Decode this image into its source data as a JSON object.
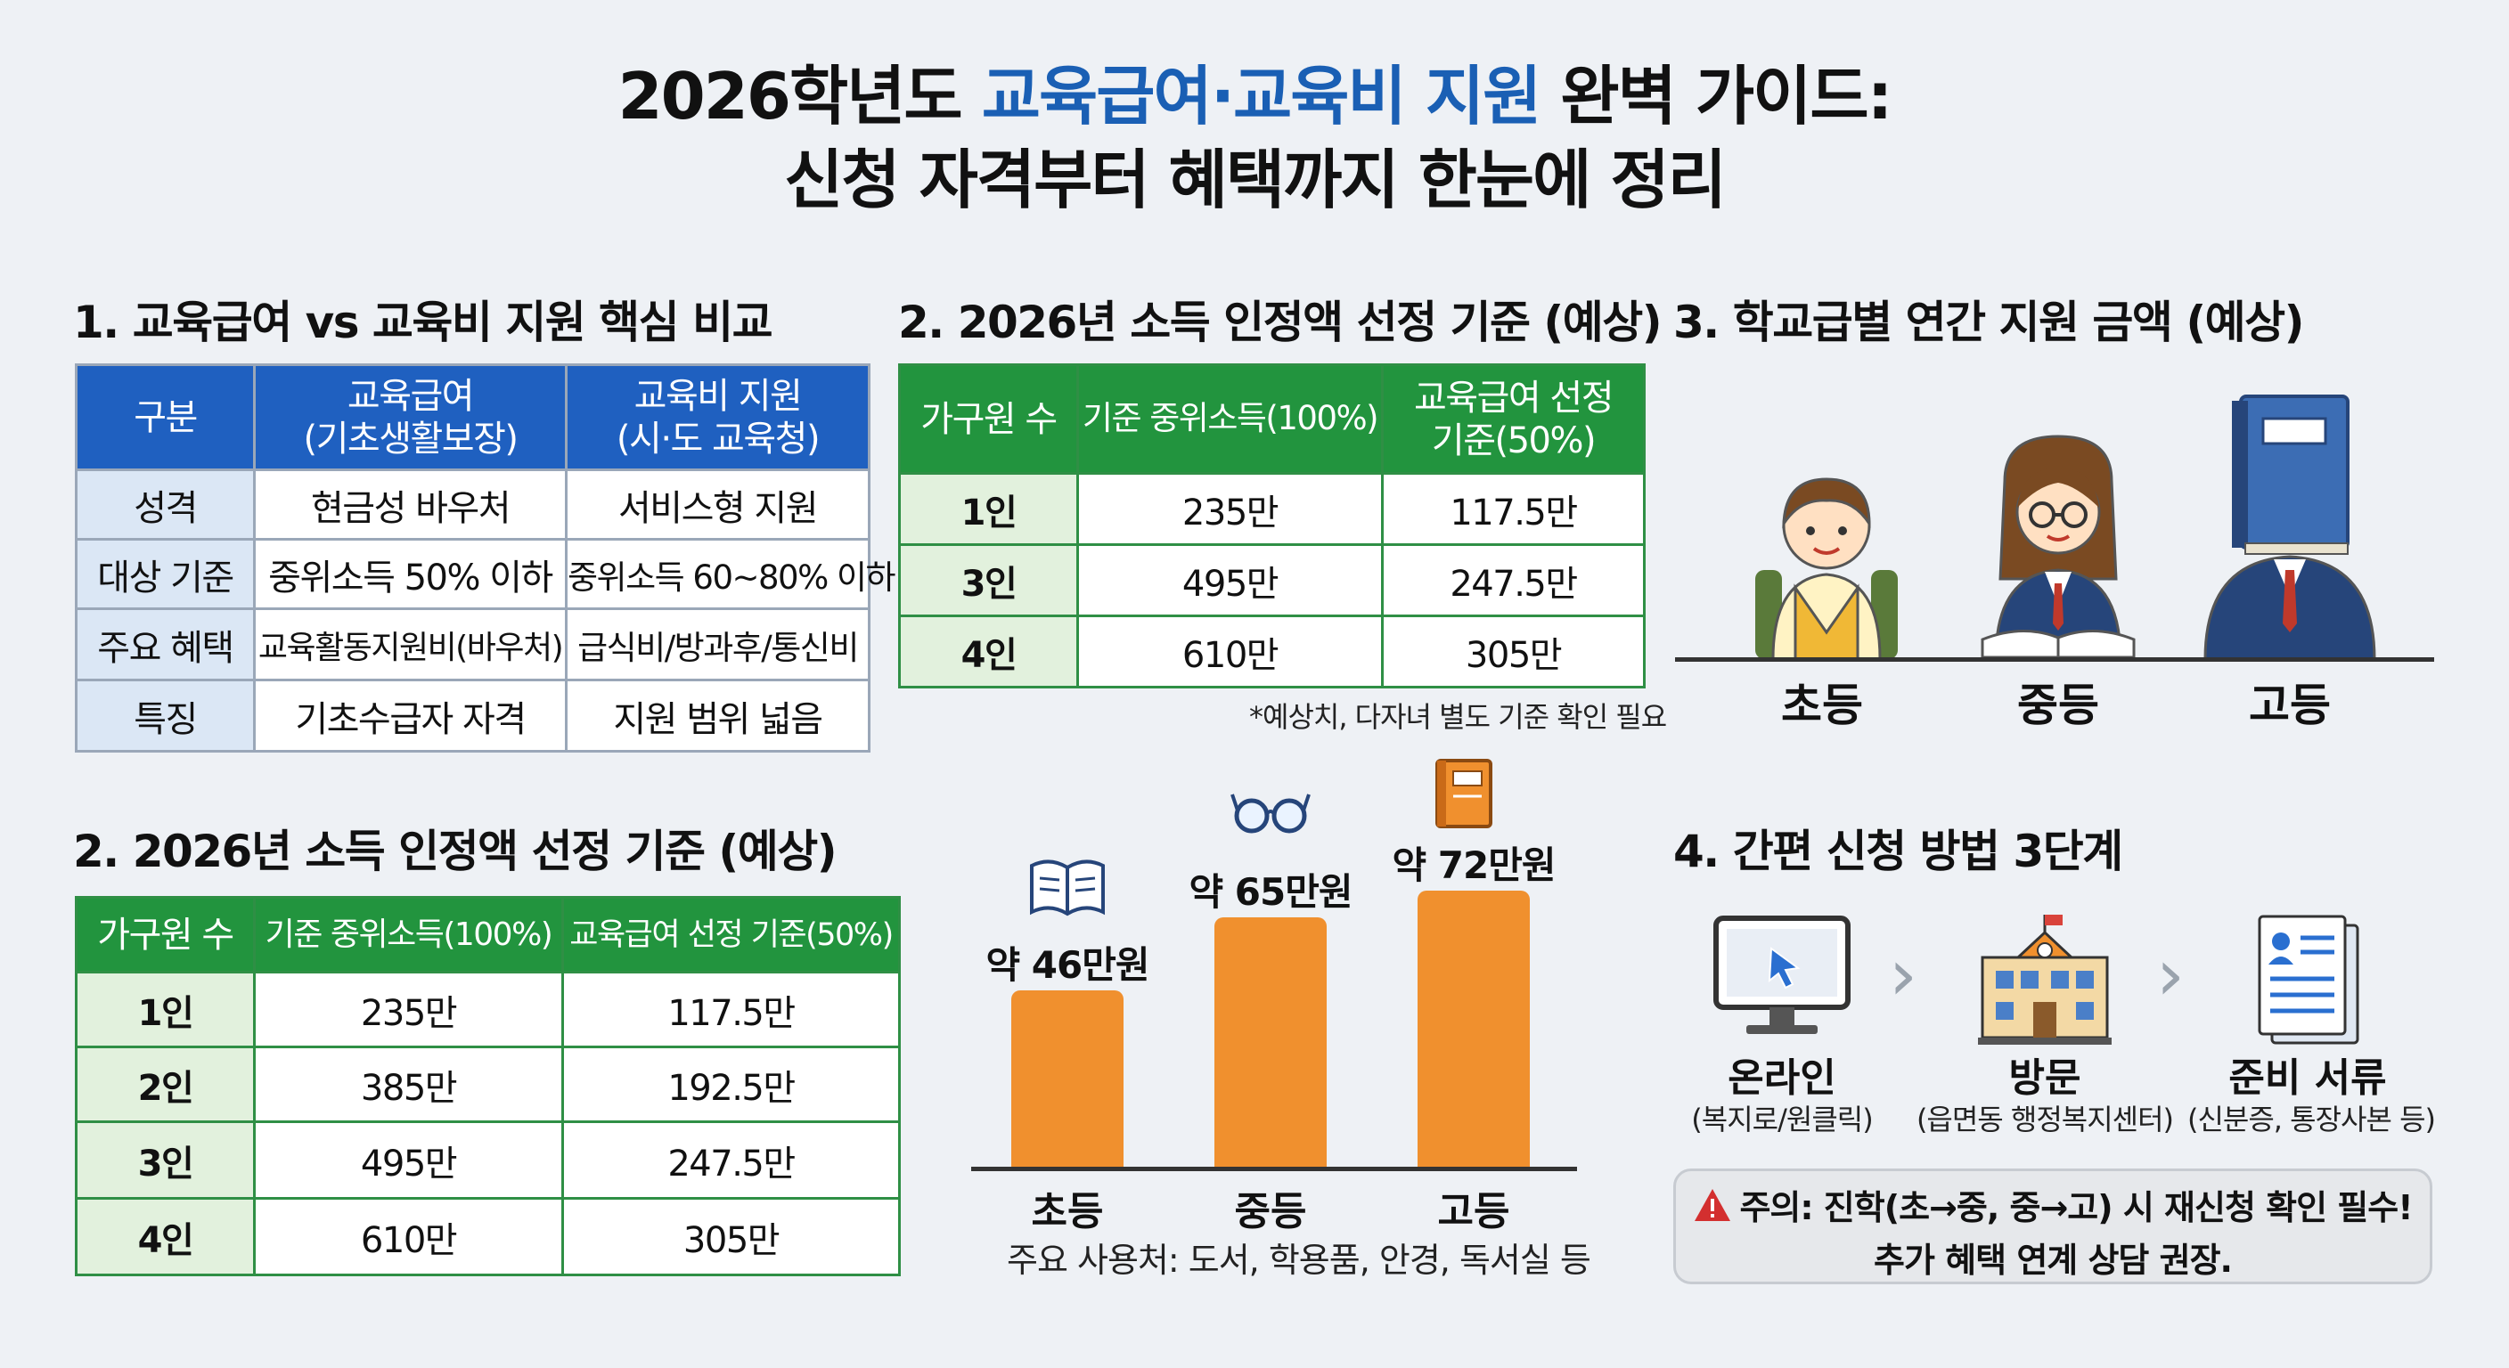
{
  "title": {
    "line1_prefix": "2026학년도 ",
    "line1_highlight": "교육급여·교육비 지원",
    "line1_suffix": " 완벽 가이드:",
    "line2": "신청 자격부터 혜택까지 한눈에 정리"
  },
  "compare": {
    "heading": "1. 교육급여 vs 교육비 지원 핵심 비교",
    "headers": [
      "구분",
      "교육급여",
      "(기초생활보장)",
      "교육비 지원",
      "(시·도 교육청)"
    ],
    "rows": [
      [
        "성격",
        "현금성 바우처",
        "서비스형 지원"
      ],
      [
        "대상 기준",
        "중위소득 50% 이하",
        "중위소득 60~80% 이하"
      ],
      [
        "주요 혜택",
        "교육활동지원비(바우처)",
        "급식비/방과후/통신비"
      ],
      [
        "특징",
        "기초수급자 자격",
        "지원 범위 넓음"
      ]
    ]
  },
  "income_top": {
    "heading": "2. 2026년 소득 인정액 선정 기준 (예상)",
    "headers": [
      "가구원 수",
      "기준 중위소득(100%)",
      "교육급여 선정",
      "기준(50%)"
    ],
    "rows": [
      [
        "1인",
        "235만",
        "117.5만"
      ],
      [
        "3인",
        "495만",
        "247.5만"
      ],
      [
        "4인",
        "610만",
        "305만"
      ]
    ],
    "note": "*예상치, 다자녀 별도 기준 확인 필요"
  },
  "income_bottom": {
    "heading": "2. 2026년 소득 인정액 선정 기준 (예상)",
    "headers": [
      "가구원 수",
      "기준 중위소득(100%)",
      "교육급여 선정 기준(50%)"
    ],
    "rows": [
      [
        "1인",
        "235만",
        "117.5만"
      ],
      [
        "2인",
        "385만",
        "192.5만"
      ],
      [
        "3인",
        "495만",
        "247.5만"
      ],
      [
        "4인",
        "610만",
        "305만"
      ]
    ]
  },
  "school": {
    "heading": "3. 학교급별 연간 지원 금액 (예상)",
    "levels": [
      "초등",
      "중등",
      "고등"
    ]
  },
  "chart_data": {
    "type": "bar",
    "categories": [
      "초등",
      "중등",
      "고등"
    ],
    "values": [
      46,
      65,
      72
    ],
    "value_labels": [
      "약 46만원",
      "약 65만원",
      "약 72만원"
    ],
    "ylim": [
      0,
      72
    ],
    "caption": "주요 사용처: 도서, 학용품, 안경, 독서실 등",
    "color": "#f0902e"
  },
  "apply": {
    "heading": "4. 간편 신청 방법 3단계",
    "steps": [
      {
        "title": "온라인",
        "sub": "(복지로/원클릭)",
        "icon": "computer-icon"
      },
      {
        "title": "방문",
        "sub": "(읍면동 행정복지센터)",
        "icon": "school-building-icon"
      },
      {
        "title": "준비 서류",
        "sub": "(신분증, 통장사본 등)",
        "icon": "document-icon"
      }
    ],
    "caution_line1": "주의: 진학(초→중, 중→고) 시 재신청 확인 필수!",
    "caution_line2": "추가 혜택 연계 상담 권장."
  },
  "colors": {
    "blue": "#1f60c0",
    "green": "#22943e",
    "orange": "#f0902e",
    "title_highlight": "#1a5fb4"
  }
}
